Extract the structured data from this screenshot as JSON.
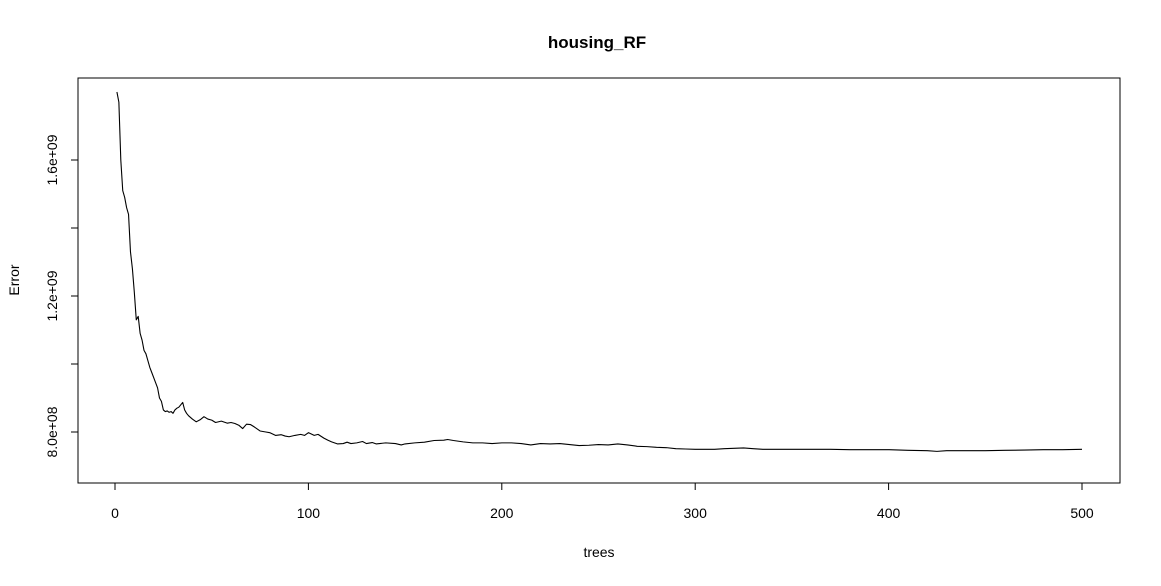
{
  "chart_data": {
    "type": "line",
    "title": "housing_RF",
    "xlabel": "trees",
    "ylabel": "Error",
    "xlim": [
      0,
      500
    ],
    "ylim": [
      700000000,
      1800000000
    ],
    "grid": false,
    "legend": "none",
    "x_ticks": [
      0,
      100,
      200,
      300,
      400,
      500
    ],
    "x_tick_labels": [
      "0",
      "100",
      "200",
      "300",
      "400",
      "500"
    ],
    "y_ticks": [
      800000000,
      1000000000,
      1200000000,
      1400000000,
      1600000000
    ],
    "y_tick_labels": [
      "8.0e+08",
      "",
      "1.2e+09",
      "",
      "1.6e+09"
    ],
    "series": [
      {
        "color": "#000000",
        "points": [
          [
            1,
            1800000000
          ],
          [
            2,
            1770000000
          ],
          [
            3,
            1600000000
          ],
          [
            4,
            1510000000
          ],
          [
            5,
            1490000000
          ],
          [
            6,
            1460000000
          ],
          [
            7,
            1440000000
          ],
          [
            8,
            1330000000
          ],
          [
            9,
            1280000000
          ],
          [
            10,
            1210000000
          ],
          [
            11,
            1130000000
          ],
          [
            12,
            1140000000
          ],
          [
            13,
            1090000000
          ],
          [
            14,
            1070000000
          ],
          [
            15,
            1040000000
          ],
          [
            16,
            1030000000
          ],
          [
            17,
            1010000000
          ],
          [
            18,
            990000000
          ],
          [
            19,
            975000000
          ],
          [
            20,
            960000000
          ],
          [
            21,
            945000000
          ],
          [
            22,
            930000000
          ],
          [
            23,
            900000000
          ],
          [
            24,
            890000000
          ],
          [
            25,
            865000000
          ],
          [
            26,
            860000000
          ],
          [
            27,
            862000000
          ],
          [
            28,
            858000000
          ],
          [
            29,
            860000000
          ],
          [
            30,
            855000000
          ],
          [
            31,
            865000000
          ],
          [
            32,
            870000000
          ],
          [
            33,
            873000000
          ],
          [
            34,
            880000000
          ],
          [
            35,
            887000000
          ],
          [
            36,
            865000000
          ],
          [
            37,
            855000000
          ],
          [
            38,
            848000000
          ],
          [
            40,
            838000000
          ],
          [
            42,
            830000000
          ],
          [
            44,
            836000000
          ],
          [
            46,
            845000000
          ],
          [
            48,
            838000000
          ],
          [
            50,
            835000000
          ],
          [
            52,
            828000000
          ],
          [
            55,
            832000000
          ],
          [
            58,
            826000000
          ],
          [
            60,
            828000000
          ],
          [
            62,
            825000000
          ],
          [
            64,
            820000000
          ],
          [
            66,
            810000000
          ],
          [
            68,
            823000000
          ],
          [
            70,
            822000000
          ],
          [
            72,
            815000000
          ],
          [
            75,
            803000000
          ],
          [
            78,
            800000000
          ],
          [
            80,
            798000000
          ],
          [
            83,
            790000000
          ],
          [
            86,
            792000000
          ],
          [
            88,
            788000000
          ],
          [
            90,
            786000000
          ],
          [
            93,
            790000000
          ],
          [
            96,
            793000000
          ],
          [
            98,
            790000000
          ],
          [
            100,
            798000000
          ],
          [
            103,
            790000000
          ],
          [
            105,
            793000000
          ],
          [
            108,
            782000000
          ],
          [
            110,
            776000000
          ],
          [
            112,
            771000000
          ],
          [
            115,
            765000000
          ],
          [
            118,
            766000000
          ],
          [
            120,
            770000000
          ],
          [
            122,
            766000000
          ],
          [
            125,
            768000000
          ],
          [
            128,
            772000000
          ],
          [
            130,
            766000000
          ],
          [
            133,
            769000000
          ],
          [
            135,
            765000000
          ],
          [
            140,
            768000000
          ],
          [
            145,
            766000000
          ],
          [
            148,
            762000000
          ],
          [
            150,
            765000000
          ],
          [
            155,
            768000000
          ],
          [
            160,
            770000000
          ],
          [
            165,
            775000000
          ],
          [
            170,
            776000000
          ],
          [
            172,
            778000000
          ],
          [
            175,
            775000000
          ],
          [
            180,
            771000000
          ],
          [
            185,
            768000000
          ],
          [
            190,
            768000000
          ],
          [
            195,
            766000000
          ],
          [
            200,
            768000000
          ],
          [
            205,
            768000000
          ],
          [
            210,
            766000000
          ],
          [
            215,
            762000000
          ],
          [
            220,
            766000000
          ],
          [
            225,
            765000000
          ],
          [
            230,
            766000000
          ],
          [
            235,
            763000000
          ],
          [
            240,
            760000000
          ],
          [
            245,
            761000000
          ],
          [
            250,
            763000000
          ],
          [
            255,
            762000000
          ],
          [
            260,
            765000000
          ],
          [
            265,
            762000000
          ],
          [
            270,
            758000000
          ],
          [
            275,
            757000000
          ],
          [
            280,
            755000000
          ],
          [
            285,
            754000000
          ],
          [
            290,
            751000000
          ],
          [
            295,
            750000000
          ],
          [
            300,
            749000000
          ],
          [
            305,
            749000000
          ],
          [
            310,
            749000000
          ],
          [
            315,
            751000000
          ],
          [
            320,
            752000000
          ],
          [
            325,
            753000000
          ],
          [
            330,
            751000000
          ],
          [
            335,
            749000000
          ],
          [
            340,
            749000000
          ],
          [
            350,
            749000000
          ],
          [
            360,
            749000000
          ],
          [
            370,
            749000000
          ],
          [
            380,
            748000000
          ],
          [
            390,
            748000000
          ],
          [
            400,
            748000000
          ],
          [
            410,
            746000000
          ],
          [
            420,
            745000000
          ],
          [
            425,
            743000000
          ],
          [
            430,
            745000000
          ],
          [
            440,
            745000000
          ],
          [
            450,
            745000000
          ],
          [
            460,
            746000000
          ],
          [
            470,
            747000000
          ],
          [
            480,
            748000000
          ],
          [
            490,
            748000000
          ],
          [
            500,
            749000000
          ]
        ]
      }
    ]
  }
}
